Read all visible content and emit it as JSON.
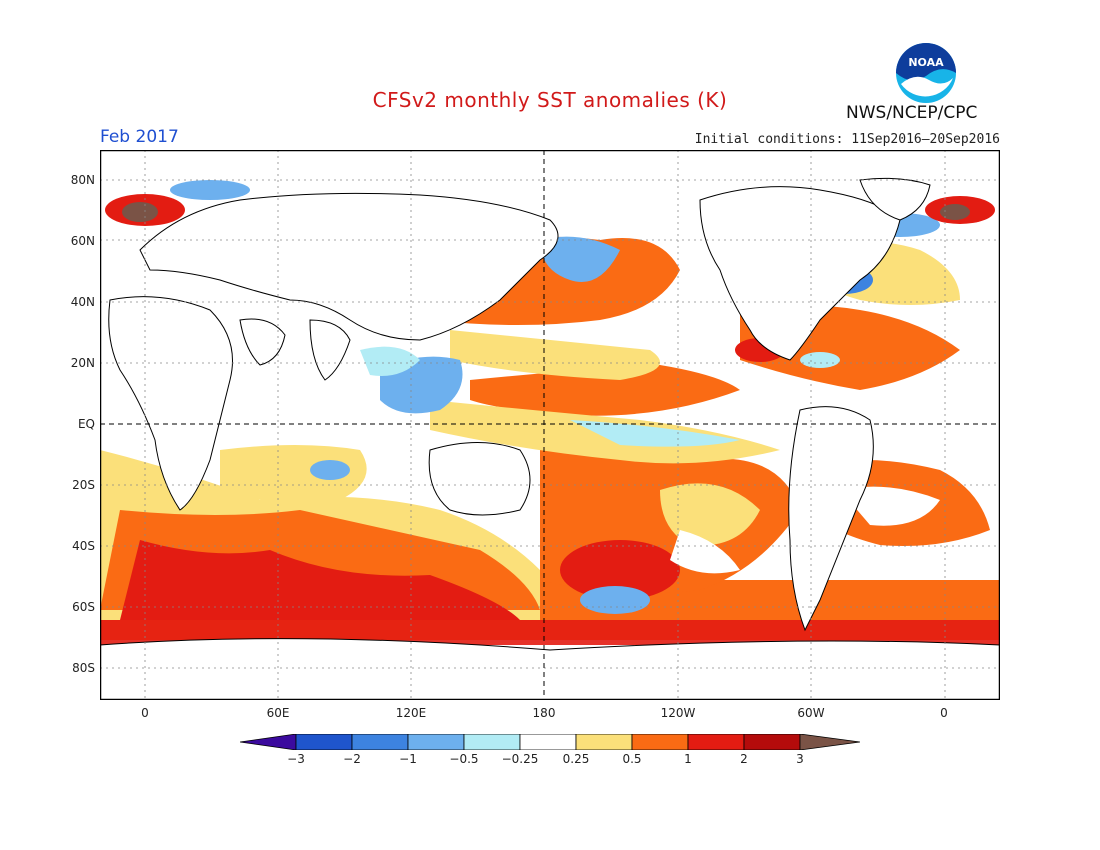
{
  "header": {
    "title": "CFSv2 monthly SST anomalies (K)",
    "month": "Feb 2017",
    "initial_conditions": "Initial conditions: 11Sep2016–20Sep2016",
    "organization": "NWS/NCEP/CPC",
    "logo_text": "NOAA"
  },
  "map": {
    "lat_labels": [
      "80N",
      "60N",
      "40N",
      "20N",
      "EQ",
      "20S",
      "40S",
      "60S",
      "80S"
    ],
    "lon_labels": [
      "0",
      "60E",
      "120E",
      "180",
      "120W",
      "60W",
      "0"
    ],
    "colors": {
      "white": "#ffffff",
      "light_yellow": "#fbe07a",
      "orange": "#fa6b14",
      "red": "#e31c12",
      "dark_red": "#b40b0b",
      "brown": "#7a5346",
      "light_cyan": "#b2ecf5",
      "light_blue": "#6db0ee",
      "mid_blue": "#3d83e0",
      "blue": "#1f55cc",
      "purple": "#3b0a9e"
    }
  },
  "colorbar": {
    "labels": [
      "−3",
      "−2",
      "−1",
      "−0.5",
      "−0.25",
      "0.25",
      "0.5",
      "1",
      "2",
      "3"
    ],
    "segments": [
      "#3b0a9e",
      "#1f55cc",
      "#3d83e0",
      "#6db0ee",
      "#b2ecf5",
      "#ffffff",
      "#fbe07a",
      "#fa6b14",
      "#e31c12",
      "#b40b0b",
      "#7a5346"
    ]
  }
}
